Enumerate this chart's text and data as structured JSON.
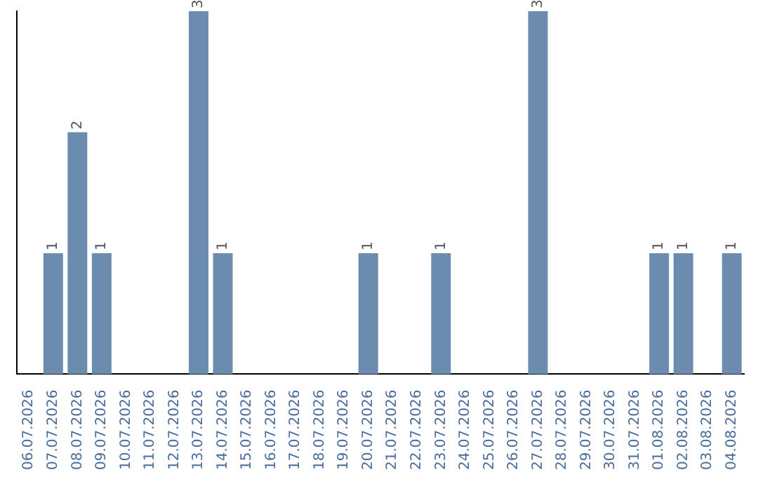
{
  "chart_data": {
    "type": "bar",
    "categories": [
      "06.07.2026",
      "07.07.2026",
      "08.07.2026",
      "09.07.2026",
      "10.07.2026",
      "11.07.2026",
      "12.07.2026",
      "13.07.2026",
      "14.07.2026",
      "15.07.2026",
      "16.07.2026",
      "17.07.2026",
      "18.07.2026",
      "19.07.2026",
      "20.07.2026",
      "21.07.2026",
      "22.07.2026",
      "23.07.2026",
      "24.07.2026",
      "25.07.2026",
      "26.07.2026",
      "27.07.2026",
      "28.07.2026",
      "29.07.2026",
      "30.07.2026",
      "31.07.2026",
      "01.08.2026",
      "02.08.2026",
      "03.08.2026",
      "04.08.2026"
    ],
    "values": [
      0,
      1,
      2,
      1,
      0,
      0,
      0,
      3,
      1,
      0,
      0,
      0,
      0,
      0,
      1,
      0,
      0,
      1,
      0,
      0,
      0,
      3,
      0,
      0,
      0,
      0,
      1,
      1,
      0,
      1
    ],
    "value_labels": [
      null,
      "1",
      "2",
      "1",
      null,
      null,
      null,
      "3",
      "1",
      null,
      null,
      null,
      null,
      null,
      "1",
      null,
      null,
      "1",
      null,
      null,
      null,
      "3",
      null,
      null,
      null,
      null,
      "1",
      "1",
      null,
      "1"
    ],
    "color": "#6b8cae",
    "ylim": [
      0,
      3
    ],
    "tick_labels": "x",
    "grid": false,
    "legend": false
  }
}
